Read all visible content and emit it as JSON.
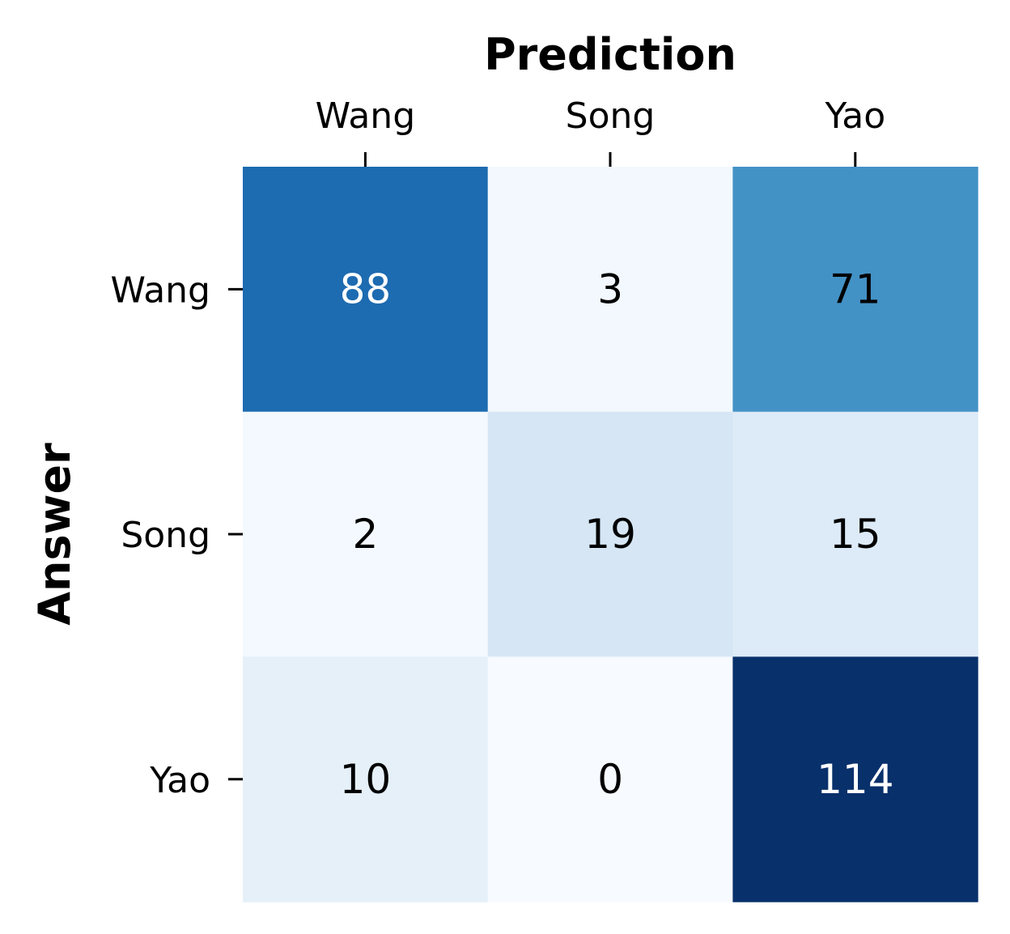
{
  "chart_data": {
    "type": "heatmap",
    "title": "",
    "xlabel": "Prediction",
    "ylabel": "Answer",
    "x_categories": [
      "Wang",
      "Song",
      "Yao"
    ],
    "y_categories": [
      "Wang",
      "Song",
      "Yao"
    ],
    "values": [
      [
        88,
        3,
        71
      ],
      [
        2,
        19,
        15
      ],
      [
        10,
        0,
        114
      ]
    ],
    "colormap": "Blues",
    "x_axis_position": "top",
    "colorbar": false,
    "grid": false
  }
}
